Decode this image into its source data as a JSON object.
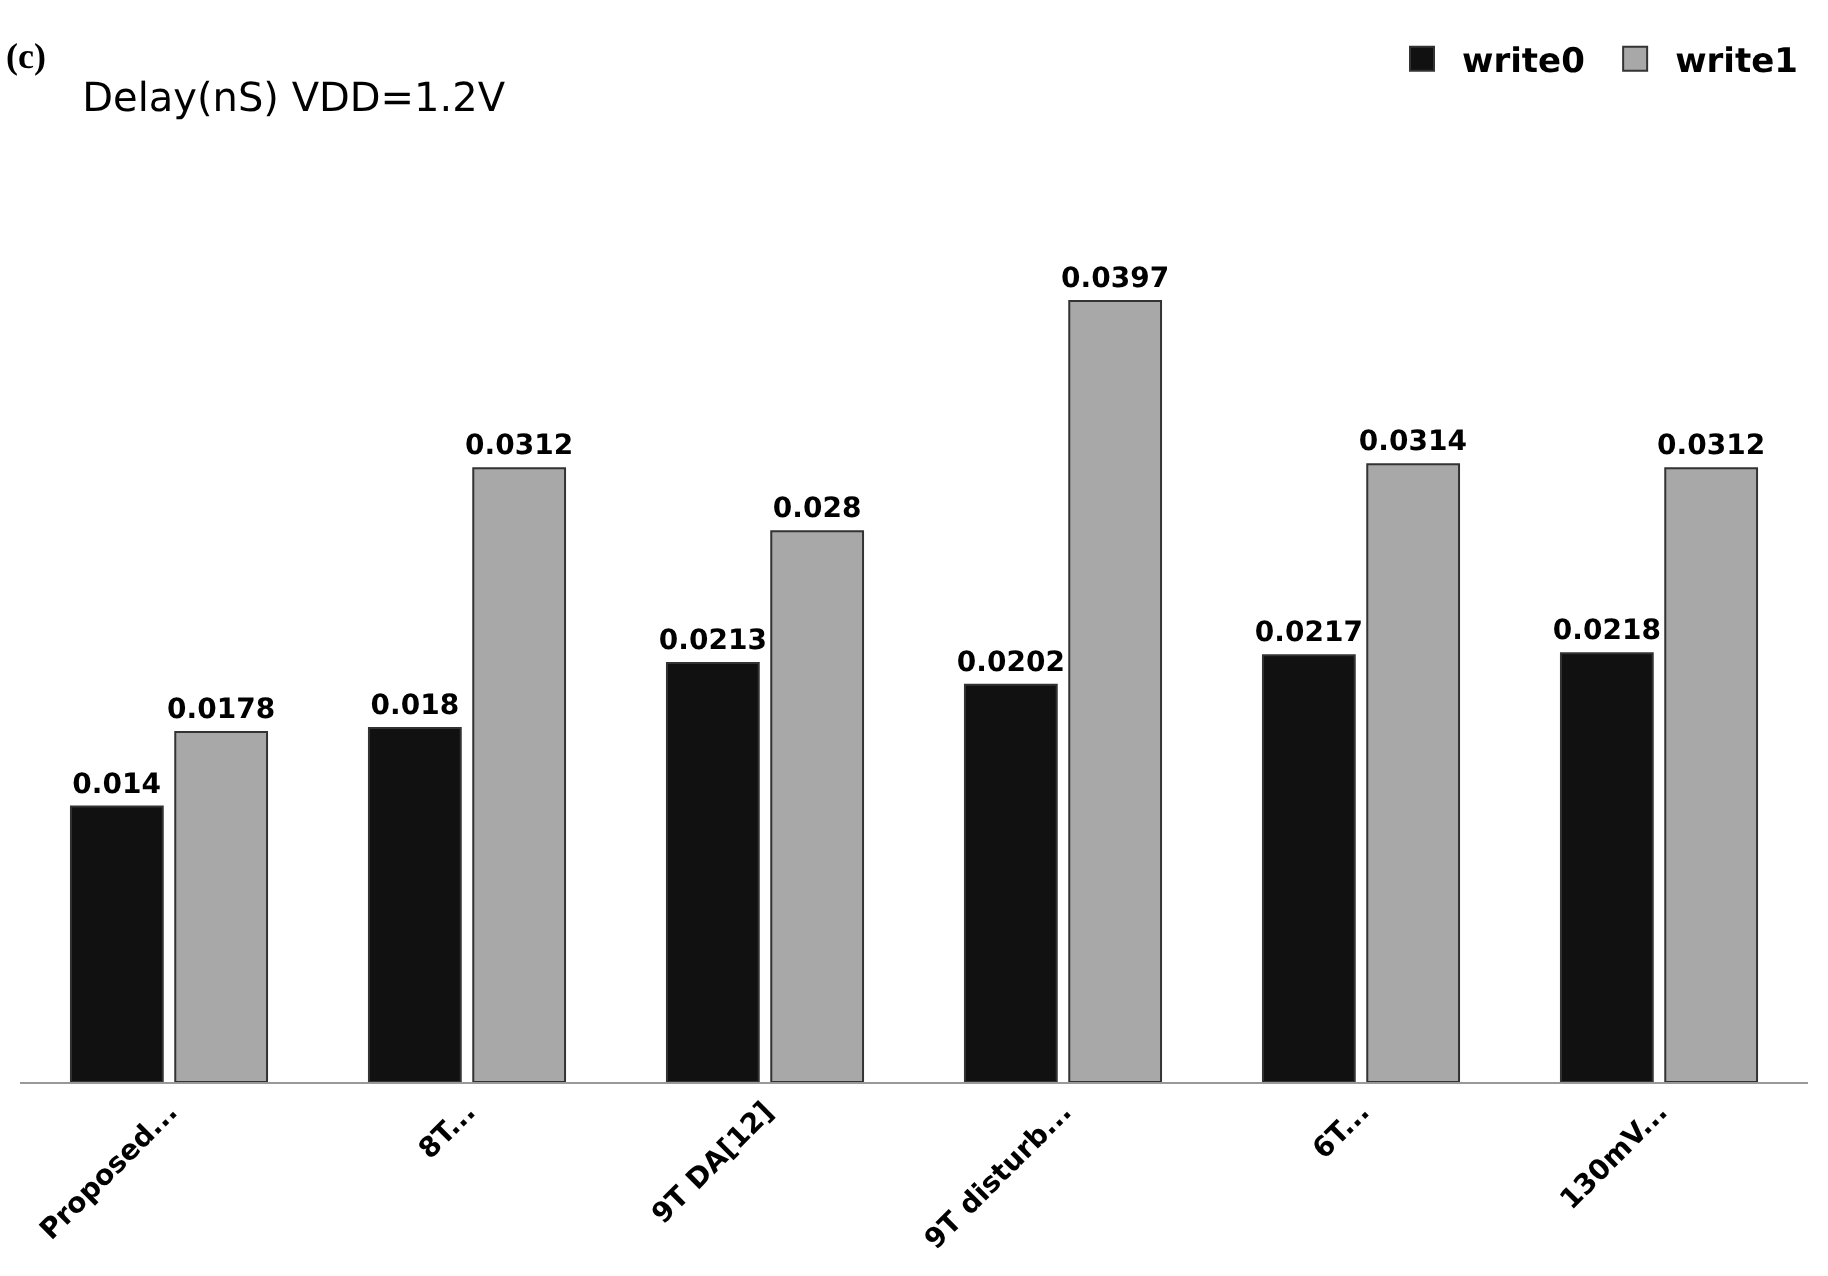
{
  "chart_data": {
    "type": "bar",
    "title": "Delay(nS) VDD=1.2V",
    "annotations": [
      "(c)"
    ],
    "categories": [
      "Proposed...",
      "8T...",
      "9T DA[12]",
      "9T disturb...",
      "6T...",
      "130mV..."
    ],
    "series": [
      {
        "name": "write0",
        "color": "#111111",
        "values": [
          0.014,
          0.018,
          0.0213,
          0.0202,
          0.0217,
          0.0218
        ]
      },
      {
        "name": "write1",
        "color": "#a8a8a8",
        "values": [
          0.0178,
          0.0312,
          0.028,
          0.0397,
          0.0314,
          0.0312
        ]
      }
    ],
    "data_labels": true,
    "grid": false,
    "legend": "top right"
  }
}
